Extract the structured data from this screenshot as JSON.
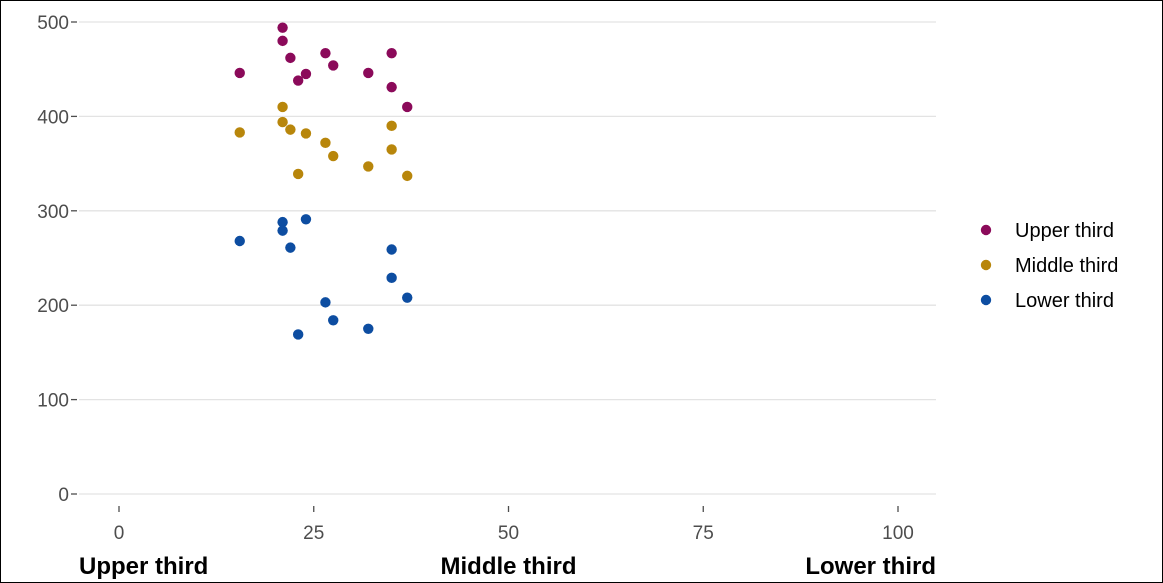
{
  "chart_data": {
    "type": "scatter",
    "title": "",
    "xlabel": "",
    "ylabel": "",
    "xlim": [
      0,
      100
    ],
    "ylim": [
      0,
      500
    ],
    "x_ticks": [
      0,
      25,
      50,
      75,
      100
    ],
    "x_tick_labels": [
      "0",
      "25",
      "50",
      "75",
      "100"
    ],
    "y_ticks": [
      0,
      100,
      200,
      300,
      400,
      500
    ],
    "y_tick_labels": [
      "0",
      "100",
      "200",
      "300",
      "400",
      "500"
    ],
    "x_category_labels": [
      {
        "x": 0,
        "label": "Upper third"
      },
      {
        "x": 50,
        "label": "Middle third"
      },
      {
        "x": 100,
        "label": "Lower third"
      }
    ],
    "grid": "horizontal",
    "legend_position": "right",
    "series": [
      {
        "name": "Upper third",
        "color": "#8b0a5a",
        "points": [
          [
            15.5,
            446
          ],
          [
            21,
            494
          ],
          [
            21,
            480
          ],
          [
            22,
            462
          ],
          [
            23,
            438
          ],
          [
            24,
            445
          ],
          [
            26.5,
            467
          ],
          [
            27.5,
            454
          ],
          [
            32,
            446
          ],
          [
            35,
            467
          ],
          [
            35,
            431
          ],
          [
            37,
            410
          ]
        ]
      },
      {
        "name": "Middle third",
        "color": "#b8860b",
        "points": [
          [
            15.5,
            383
          ],
          [
            21,
            410
          ],
          [
            21,
            394
          ],
          [
            22,
            386
          ],
          [
            23,
            339
          ],
          [
            24,
            382
          ],
          [
            26.5,
            372
          ],
          [
            27.5,
            358
          ],
          [
            32,
            347
          ],
          [
            35,
            390
          ],
          [
            35,
            365
          ],
          [
            37,
            337
          ]
        ]
      },
      {
        "name": "Lower third",
        "color": "#0d4da1",
        "points": [
          [
            15.5,
            268
          ],
          [
            21,
            288
          ],
          [
            21,
            279
          ],
          [
            22,
            261
          ],
          [
            23,
            169
          ],
          [
            24,
            291
          ],
          [
            26.5,
            203
          ],
          [
            27.5,
            184
          ],
          [
            32,
            175
          ],
          [
            35,
            259
          ],
          [
            35,
            229
          ],
          [
            37,
            208
          ]
        ]
      }
    ]
  }
}
